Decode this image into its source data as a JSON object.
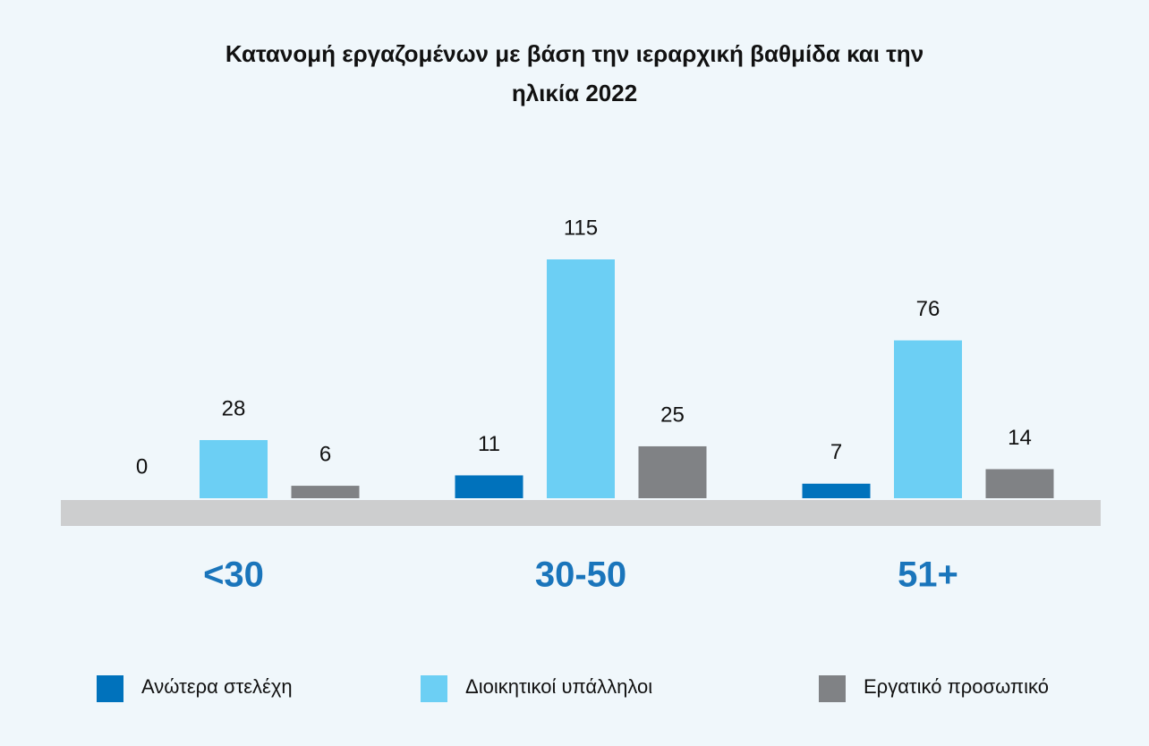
{
  "chart_data": {
    "type": "bar",
    "title": "Κατανομή εργαζομένων με βάση την ιεραρχική βαθμίδα και την ηλικία 2022",
    "categories": [
      "<30",
      "30-50",
      "51+"
    ],
    "series": [
      {
        "name": "Ανώτερα στελέχη",
        "color": "#0072bc",
        "values": [
          0,
          11,
          7
        ]
      },
      {
        "name": "Διοικητικοί υπάλληλοι",
        "color": "#6ccff4",
        "values": [
          28,
          115,
          76
        ]
      },
      {
        "name": "Εργατικό προσωπικό",
        "color": "#808285",
        "values": [
          6,
          25,
          14
        ]
      }
    ]
  }
}
